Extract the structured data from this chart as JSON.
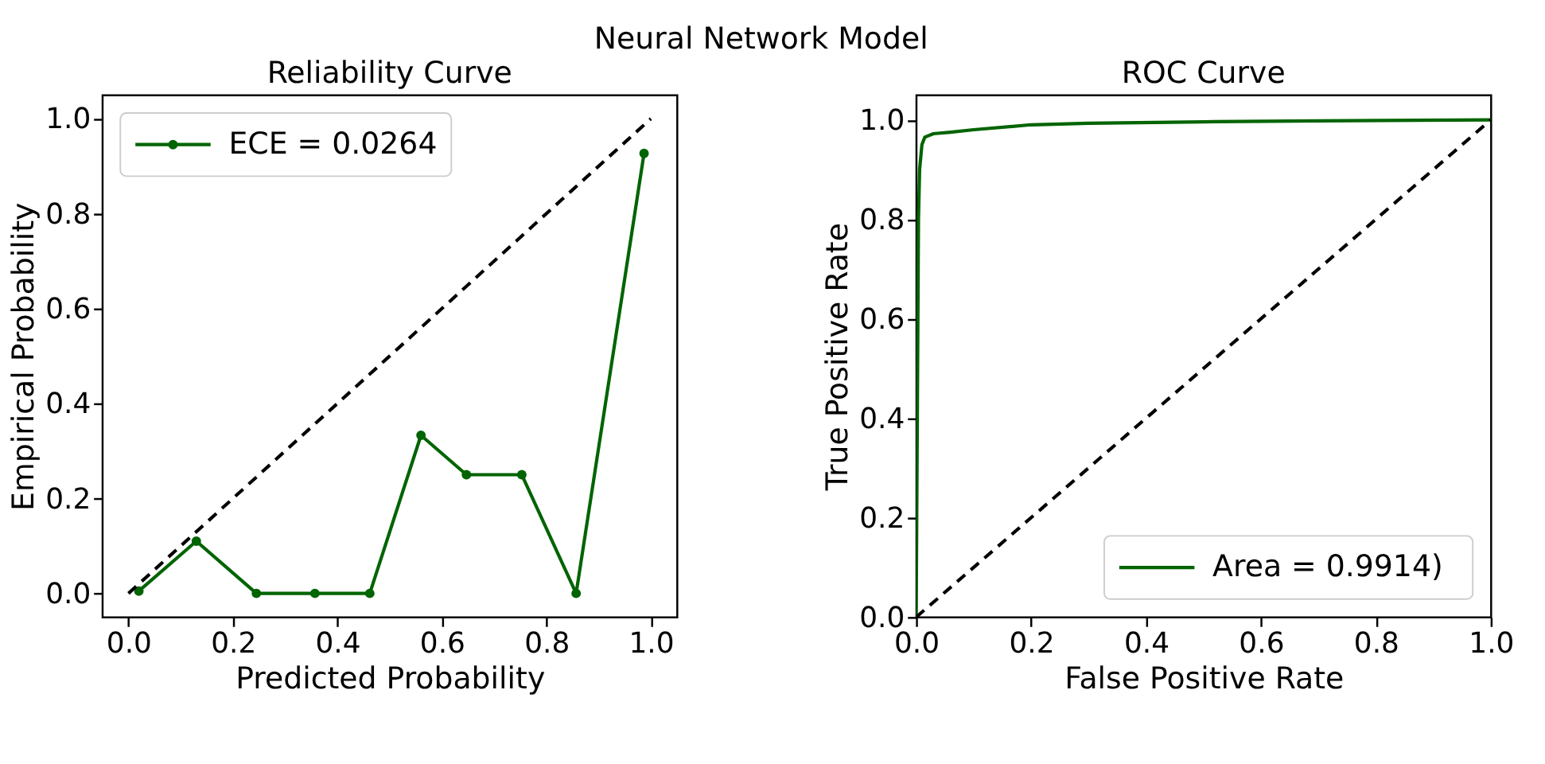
{
  "chart_data": [
    {
      "type": "line",
      "title": "Reliability Curve",
      "xlabel": "Predicted Probability",
      "ylabel": "Empirical Probability",
      "annotations": [
        "Neural Network Model"
      ],
      "xlim": [
        -0.05,
        1.05
      ],
      "ylim": [
        -0.05,
        1.05
      ],
      "xticks": [
        {
          "value": 0,
          "label": "0.0"
        },
        {
          "value": 0.2,
          "label": "0.2"
        },
        {
          "value": 0.4,
          "label": "0.4"
        },
        {
          "value": 0.6,
          "label": "0.6"
        },
        {
          "value": 0.8,
          "label": "0.8"
        },
        {
          "value": 1,
          "label": "1.0"
        }
      ],
      "yticks": [
        {
          "value": 0,
          "label": "0.0"
        },
        {
          "value": 0.2,
          "label": "0.2"
        },
        {
          "value": 0.4,
          "label": "0.4"
        },
        {
          "value": 0.6,
          "label": "0.6"
        },
        {
          "value": 0.8,
          "label": "0.8"
        },
        {
          "value": 1,
          "label": "1.0"
        }
      ],
      "grid": false,
      "legend": "top left",
      "series": [
        {
          "name": "ECE = 0.0264",
          "color": "#006400",
          "marker": "circle",
          "line_style": "solid",
          "x": [
            0.02,
            0.13,
            0.245,
            0.357,
            0.462,
            0.56,
            0.647,
            0.753,
            0.857,
            0.987
          ],
          "values": [
            0.005,
            0.11,
            0,
            0,
            0,
            0.333,
            0.25,
            0.25,
            0,
            0.927
          ]
        },
        {
          "color": "#000000",
          "marker": "none",
          "line_style": "dashed",
          "x": [
            0,
            1
          ],
          "values": [
            0,
            1
          ]
        }
      ]
    },
    {
      "type": "line",
      "title": "ROC Curve",
      "xlabel": "False Positive Rate",
      "ylabel": "True Positive Rate",
      "xlim": [
        0,
        1
      ],
      "ylim": [
        0,
        1.05
      ],
      "xticks": [
        {
          "value": 0,
          "label": "0.0"
        },
        {
          "value": 0.2,
          "label": "0.2"
        },
        {
          "value": 0.4,
          "label": "0.4"
        },
        {
          "value": 0.6,
          "label": "0.6"
        },
        {
          "value": 0.8,
          "label": "0.8"
        },
        {
          "value": 1,
          "label": "1.0"
        }
      ],
      "yticks": [
        {
          "value": 0,
          "label": "0.0"
        },
        {
          "value": 0.2,
          "label": "0.2"
        },
        {
          "value": 0.4,
          "label": "0.4"
        },
        {
          "value": 0.6,
          "label": "0.6"
        },
        {
          "value": 0.8,
          "label": "0.8"
        },
        {
          "value": 1,
          "label": "1.0"
        }
      ],
      "grid": false,
      "legend": "bottom right",
      "series": [
        {
          "name": "Area = 0.9914)",
          "color": "#006400",
          "marker": "none",
          "line_style": "solid",
          "x": [
            0,
            0.002,
            0.004,
            0.006,
            0.01,
            0.015,
            0.03,
            0.06,
            0.1,
            0.2,
            0.3,
            0.5,
            0.7,
            1
          ],
          "values": [
            0,
            0.4,
            0.8,
            0.9,
            0.95,
            0.965,
            0.972,
            0.975,
            0.98,
            0.99,
            0.993,
            0.996,
            0.998,
            1
          ]
        },
        {
          "color": "#000000",
          "marker": "none",
          "line_style": "dashed",
          "x": [
            0,
            1
          ],
          "values": [
            0,
            1
          ]
        }
      ]
    }
  ]
}
